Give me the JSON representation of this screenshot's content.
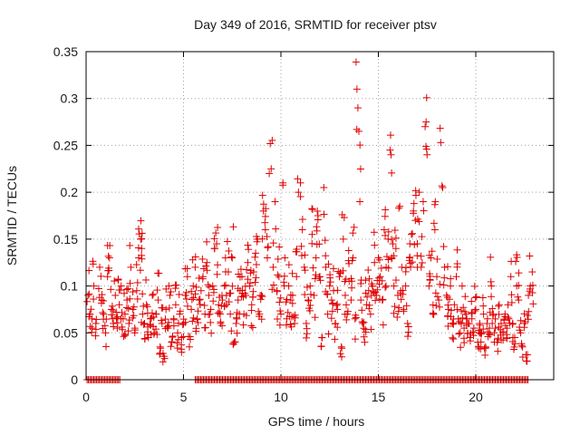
{
  "chart_data": {
    "type": "scatter",
    "title": "Day 349 of 2016, SRMTID for receiver ptsv",
    "xlabel": "GPS time / hours",
    "ylabel": "SRMTID / TECUs",
    "xlim": [
      0,
      24
    ],
    "ylim": [
      0,
      0.35
    ],
    "xticks": [
      0,
      5,
      10,
      15,
      20
    ],
    "xtick_labels": [
      "0",
      "5",
      "10",
      "15",
      "20"
    ],
    "yticks": [
      0,
      0.05,
      0.1,
      0.15,
      0.2,
      0.25,
      0.3,
      0.35
    ],
    "ytick_labels": [
      "0",
      "0.05",
      "0.1",
      "0.15",
      "0.2",
      "0.25",
      "0.3",
      "0.35"
    ],
    "grid": true,
    "marker": "+",
    "color": "#e00000",
    "series": [
      {
        "name": "SRMTID",
        "points": [
          [
            0.1,
            0.09
          ],
          [
            0.2,
            0.07
          ],
          [
            0.3,
            0.065
          ],
          [
            0.4,
            0.1
          ],
          [
            0.5,
            0.06
          ],
          [
            0.7,
            0.12
          ],
          [
            0.8,
            0.085
          ],
          [
            0.9,
            0.07
          ],
          [
            1.0,
            0.05
          ],
          [
            1.1,
            0.11
          ],
          [
            1.2,
            0.13
          ],
          [
            1.3,
            0.075
          ],
          [
            1.4,
            0.06
          ],
          [
            1.5,
            0.09
          ],
          [
            1.6,
            0.055
          ],
          [
            1.7,
            0.08
          ],
          [
            1.8,
            0.1
          ],
          [
            1.9,
            0.065
          ],
          [
            2.0,
            0.07
          ],
          [
            2.1,
            0.085
          ],
          [
            2.2,
            0.06
          ],
          [
            2.3,
            0.12
          ],
          [
            2.4,
            0.075
          ],
          [
            2.5,
            0.055
          ],
          [
            2.6,
            0.095
          ],
          [
            2.7,
            0.13
          ],
          [
            2.8,
            0.15
          ],
          [
            2.85,
            0.14
          ],
          [
            2.9,
            0.07
          ],
          [
            3.0,
            0.06
          ],
          [
            3.1,
            0.08
          ],
          [
            3.2,
            0.045
          ],
          [
            3.3,
            0.065
          ],
          [
            3.4,
            0.09
          ],
          [
            3.5,
            0.05
          ],
          [
            3.6,
            0.07
          ],
          [
            3.7,
            0.085
          ],
          [
            3.8,
            0.035
          ],
          [
            3.9,
            0.06
          ],
          [
            4.0,
            0.025
          ],
          [
            4.1,
            0.075
          ],
          [
            4.2,
            0.055
          ],
          [
            4.3,
            0.09
          ],
          [
            4.4,
            0.04
          ],
          [
            4.5,
            0.065
          ],
          [
            4.6,
            0.08
          ],
          [
            4.7,
            0.05
          ],
          [
            4.8,
            0.07
          ],
          [
            4.9,
            0.045
          ],
          [
            5.0,
            0.06
          ],
          [
            5.1,
            0.09
          ],
          [
            5.2,
            0.11
          ],
          [
            5.3,
            0.035
          ],
          [
            5.4,
            0.075
          ],
          [
            5.5,
            0.1
          ],
          [
            5.6,
            0.12
          ],
          [
            5.7,
            0.065
          ],
          [
            5.8,
            0.085
          ],
          [
            5.9,
            0.095
          ],
          [
            6.0,
            0.11
          ],
          [
            6.1,
            0.07
          ],
          [
            6.2,
            0.125
          ],
          [
            6.3,
            0.09
          ],
          [
            6.4,
            0.075
          ],
          [
            6.5,
            0.1
          ],
          [
            6.6,
            0.14
          ],
          [
            6.7,
            0.145
          ],
          [
            6.8,
            0.08
          ],
          [
            6.9,
            0.06
          ],
          [
            7.0,
            0.085
          ],
          [
            7.1,
            0.1
          ],
          [
            7.2,
            0.09
          ],
          [
            7.3,
            0.115
          ],
          [
            7.4,
            0.07
          ],
          [
            7.5,
            0.13
          ],
          [
            7.6,
            0.04
          ],
          [
            7.7,
            0.06
          ],
          [
            7.8,
            0.085
          ],
          [
            7.9,
            0.095
          ],
          [
            8.0,
            0.11
          ],
          [
            8.1,
            0.07
          ],
          [
            8.2,
            0.09
          ],
          [
            8.3,
            0.125
          ],
          [
            8.4,
            0.1
          ],
          [
            8.5,
            0.08
          ],
          [
            8.6,
            0.115
          ],
          [
            8.7,
            0.135
          ],
          [
            8.8,
            0.15
          ],
          [
            8.9,
            0.07
          ],
          [
            9.0,
            0.09
          ],
          [
            9.1,
            0.18
          ],
          [
            9.2,
            0.16
          ],
          [
            9.3,
            0.13
          ],
          [
            9.4,
            0.22
          ],
          [
            9.5,
            0.225
          ],
          [
            9.6,
            0.12
          ],
          [
            9.7,
            0.19
          ],
          [
            9.8,
            0.095
          ],
          [
            9.9,
            0.11
          ],
          [
            10.0,
            0.07
          ],
          [
            10.1,
            0.21
          ],
          [
            10.2,
            0.13
          ],
          [
            10.3,
            0.065
          ],
          [
            10.4,
            0.1
          ],
          [
            10.5,
            0.085
          ],
          [
            10.6,
            0.09
          ],
          [
            10.7,
            0.06
          ],
          [
            10.8,
            0.11
          ],
          [
            10.9,
            0.2
          ],
          [
            11.0,
            0.21
          ],
          [
            11.1,
            0.16
          ],
          [
            11.2,
            0.12
          ],
          [
            11.3,
            0.06
          ],
          [
            11.4,
            0.085
          ],
          [
            11.5,
            0.1
          ],
          [
            11.6,
            0.155
          ],
          [
            11.7,
            0.09
          ],
          [
            11.8,
            0.13
          ],
          [
            11.9,
            0.175
          ],
          [
            12.0,
            0.11
          ],
          [
            12.1,
            0.045
          ],
          [
            12.2,
            0.205
          ],
          [
            12.3,
            0.12
          ],
          [
            12.4,
            0.07
          ],
          [
            12.5,
            0.1
          ],
          [
            12.6,
            0.085
          ],
          [
            12.7,
            0.095
          ],
          [
            12.8,
            0.06
          ],
          [
            12.9,
            0.075
          ],
          [
            13.0,
            0.11
          ],
          [
            13.1,
            0.035
          ],
          [
            13.2,
            0.15
          ],
          [
            13.3,
            0.09
          ],
          [
            13.4,
            0.07
          ],
          [
            13.5,
            0.105
          ],
          [
            13.6,
            0.085
          ],
          [
            13.7,
            0.13
          ],
          [
            13.8,
            0.065
          ],
          [
            13.9,
            0.31
          ],
          [
            13.95,
            0.29
          ],
          [
            14.0,
            0.265
          ],
          [
            14.05,
            0.19
          ],
          [
            14.1,
            0.085
          ],
          [
            14.2,
            0.06
          ],
          [
            14.3,
            0.04
          ],
          [
            14.4,
            0.08
          ],
          [
            14.5,
            0.095
          ],
          [
            14.6,
            0.07
          ],
          [
            14.7,
            0.1
          ],
          [
            14.8,
            0.125
          ],
          [
            14.9,
            0.09
          ],
          [
            15.0,
            0.13
          ],
          [
            15.1,
            0.11
          ],
          [
            15.2,
            0.085
          ],
          [
            15.3,
            0.16
          ],
          [
            15.4,
            0.12
          ],
          [
            15.5,
            0.15
          ],
          [
            15.6,
            0.245
          ],
          [
            15.65,
            0.24
          ],
          [
            15.7,
            0.13
          ],
          [
            15.8,
            0.1
          ],
          [
            15.9,
            0.14
          ],
          [
            16.0,
            0.09
          ],
          [
            16.1,
            0.185
          ],
          [
            16.2,
            0.12
          ],
          [
            16.3,
            0.075
          ],
          [
            16.4,
            0.1
          ],
          [
            16.5,
            0.06
          ],
          [
            16.6,
            0.13
          ],
          [
            16.7,
            0.155
          ],
          [
            16.8,
            0.18
          ],
          [
            16.9,
            0.17
          ],
          [
            17.0,
            0.145
          ],
          [
            17.1,
            0.2
          ],
          [
            17.2,
            0.12
          ],
          [
            17.3,
            0.19
          ],
          [
            17.4,
            0.27
          ],
          [
            17.45,
            0.275
          ],
          [
            17.5,
            0.24
          ],
          [
            17.6,
            0.1
          ],
          [
            17.7,
            0.13
          ],
          [
            17.8,
            0.07
          ],
          [
            17.9,
            0.16
          ],
          [
            18.0,
            0.11
          ],
          [
            18.1,
            0.085
          ],
          [
            18.2,
            0.253
          ],
          [
            18.3,
            0.205
          ],
          [
            18.4,
            0.12
          ],
          [
            18.5,
            0.09
          ],
          [
            18.6,
            0.075
          ],
          [
            18.7,
            0.1
          ],
          [
            18.8,
            0.06
          ],
          [
            18.9,
            0.08
          ],
          [
            19.0,
            0.11
          ],
          [
            19.1,
            0.065
          ],
          [
            19.2,
            0.05
          ],
          [
            19.3,
            0.1
          ],
          [
            19.4,
            0.055
          ],
          [
            19.5,
            0.07
          ],
          [
            19.6,
            0.06
          ],
          [
            19.7,
            0.045
          ],
          [
            19.8,
            0.065
          ],
          [
            19.9,
            0.055
          ],
          [
            20.0,
            0.075
          ],
          [
            20.1,
            0.04
          ],
          [
            20.2,
            0.06
          ],
          [
            20.3,
            0.05
          ],
          [
            20.4,
            0.07
          ],
          [
            20.5,
            0.035
          ],
          [
            20.6,
            0.065
          ],
          [
            20.7,
            0.055
          ],
          [
            20.8,
            0.1
          ],
          [
            20.9,
            0.07
          ],
          [
            21.0,
            0.055
          ],
          [
            21.1,
            0.04
          ],
          [
            21.2,
            0.08
          ],
          [
            21.3,
            0.06
          ],
          [
            21.4,
            0.05
          ],
          [
            21.5,
            0.07
          ],
          [
            21.6,
            0.055
          ],
          [
            21.7,
            0.065
          ],
          [
            21.8,
            0.11
          ],
          [
            21.9,
            0.06
          ],
          [
            22.0,
            0.045
          ],
          [
            22.1,
            0.1
          ],
          [
            22.2,
            0.085
          ],
          [
            22.3,
            0.05
          ],
          [
            22.4,
            0.035
          ],
          [
            22.5,
            0.06
          ],
          [
            22.6,
            0.02
          ],
          [
            22.7,
            0.09
          ],
          [
            22.8,
            0.1
          ],
          [
            22.9,
            0.115
          ]
        ]
      }
    ],
    "zero_rows_ranges": [
      [
        0.05,
        1.75
      ],
      [
        5.6,
        22.7
      ]
    ]
  }
}
